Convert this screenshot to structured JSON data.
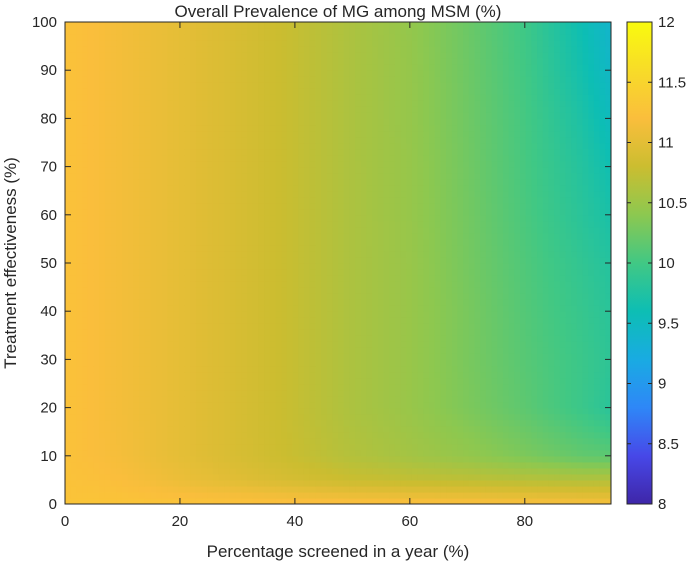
{
  "chart_data": {
    "type": "heatmap",
    "title": "Overall Prevalence of MG among MSM (%)",
    "xlabel": "Percentage screened in a year (%)",
    "ylabel": "Treatment effectiveness (%)",
    "xlim": [
      0,
      95
    ],
    "ylim": [
      0,
      100
    ],
    "x_ticks": [
      0,
      20,
      40,
      60,
      80
    ],
    "y_ticks": [
      0,
      10,
      20,
      30,
      40,
      50,
      60,
      70,
      80,
      90,
      100
    ],
    "colorbar": {
      "limits": [
        8,
        12
      ],
      "ticks": [
        8,
        8.5,
        9,
        9.5,
        10,
        10.5,
        11,
        11.5,
        12
      ],
      "colormap": "parula"
    },
    "grid": false,
    "x": [
      0,
      10,
      20,
      30,
      40,
      50,
      60,
      70,
      80,
      90,
      95
    ],
    "y": [
      0,
      5,
      10,
      20,
      30,
      40,
      50,
      60,
      70,
      80,
      90,
      100
    ],
    "z": [
      [
        11.28,
        11.28,
        11.27,
        11.26,
        11.25,
        11.24,
        11.23,
        11.22,
        11.2,
        11.18,
        11.17
      ],
      [
        11.26,
        11.2,
        11.08,
        10.98,
        10.88,
        10.8,
        10.75,
        10.72,
        10.68,
        10.65,
        10.65
      ],
      [
        11.25,
        11.15,
        11.02,
        10.9,
        10.78,
        10.65,
        10.55,
        10.45,
        10.32,
        10.18,
        10.15
      ],
      [
        11.25,
        11.14,
        11.02,
        10.9,
        10.76,
        10.6,
        10.48,
        10.32,
        10.15,
        9.95,
        9.82
      ],
      [
        11.25,
        11.14,
        11.02,
        10.9,
        10.76,
        10.6,
        10.48,
        10.3,
        10.12,
        9.95,
        9.85
      ],
      [
        11.25,
        11.14,
        11.02,
        10.9,
        10.76,
        10.6,
        10.48,
        10.3,
        10.1,
        9.92,
        9.82
      ],
      [
        11.25,
        11.14,
        11.02,
        10.9,
        10.76,
        10.6,
        10.48,
        10.28,
        10.08,
        9.88,
        9.78
      ],
      [
        11.25,
        11.14,
        11.02,
        10.9,
        10.76,
        10.6,
        10.47,
        10.27,
        10.05,
        9.82,
        9.7
      ],
      [
        11.25,
        11.14,
        11.02,
        10.9,
        10.76,
        10.6,
        10.47,
        10.26,
        10.03,
        9.78,
        9.62
      ],
      [
        11.25,
        11.14,
        11.02,
        10.9,
        10.76,
        10.6,
        10.46,
        10.25,
        10.02,
        9.72,
        9.52
      ],
      [
        11.25,
        11.14,
        11.02,
        10.9,
        10.76,
        10.6,
        10.46,
        10.24,
        10.0,
        9.65,
        9.45
      ],
      [
        11.25,
        11.14,
        11.02,
        10.9,
        10.76,
        10.6,
        10.45,
        10.23,
        9.98,
        9.6,
        9.4
      ]
    ]
  }
}
